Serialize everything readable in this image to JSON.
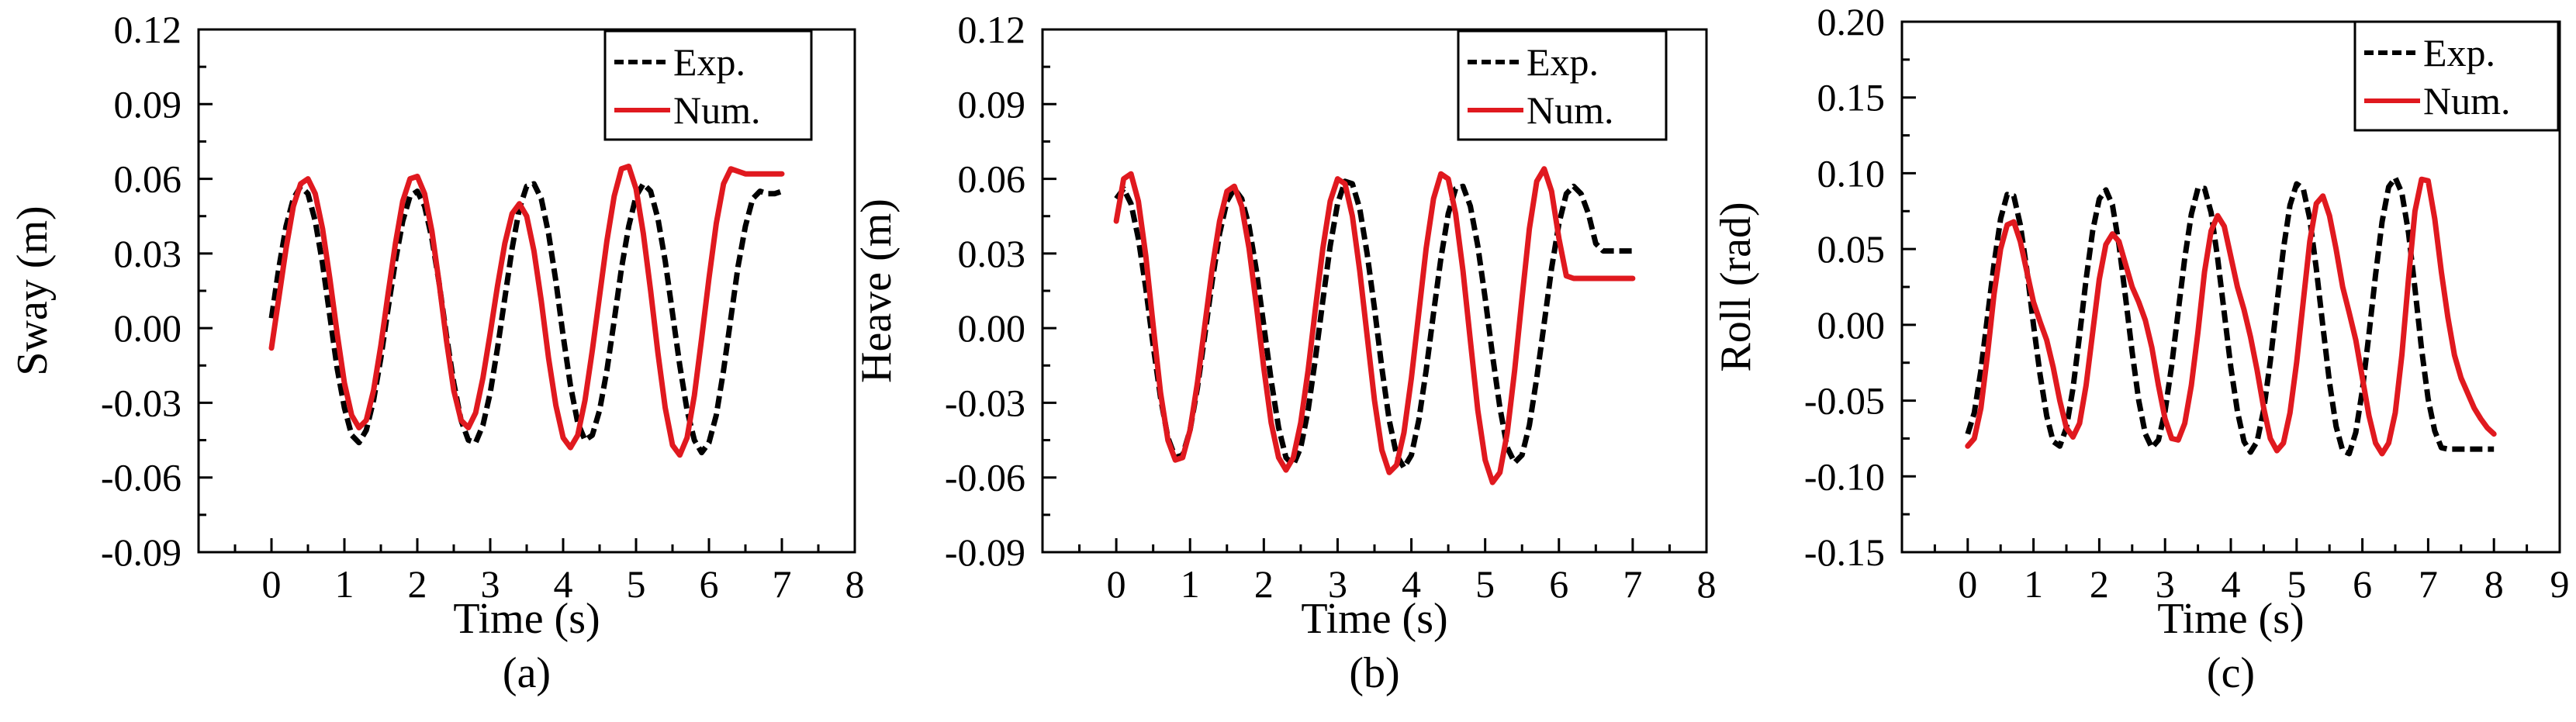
{
  "colors": {
    "exp": "#000000",
    "num": "#e0191f"
  },
  "chart_data": [
    {
      "type": "line",
      "panel_label": "(a)",
      "xlabel": "Time (s)",
      "ylabel": "Sway (m)",
      "xlim": [
        -1,
        8
      ],
      "ylim": [
        -0.09,
        0.12
      ],
      "xticks": [
        "0",
        "1",
        "2",
        "3",
        "4",
        "5",
        "6",
        "7",
        "8"
      ],
      "yticks": [
        "0.12",
        "0.09",
        "0.06",
        "0.03",
        "0.00",
        "-0.03",
        "-0.06",
        "-0.09"
      ],
      "ytick_values": [
        0.12,
        0.09,
        0.06,
        0.03,
        0.0,
        -0.03,
        -0.06,
        -0.09
      ],
      "legend_position": "top-right",
      "series": [
        {
          "name": "Exp.",
          "style": "dashed",
          "color": "#000000",
          "x": [
            0,
            0.1,
            0.2,
            0.3,
            0.4,
            0.5,
            0.6,
            0.7,
            0.8,
            0.9,
            1.0,
            1.1,
            1.2,
            1.3,
            1.4,
            1.5,
            1.6,
            1.7,
            1.8,
            1.9,
            2.0,
            2.1,
            2.2,
            2.3,
            2.4,
            2.5,
            2.6,
            2.7,
            2.8,
            2.9,
            3.0,
            3.1,
            3.2,
            3.3,
            3.4,
            3.5,
            3.6,
            3.7,
            3.8,
            3.9,
            4.0,
            4.1,
            4.2,
            4.3,
            4.4,
            4.5,
            4.6,
            4.7,
            4.8,
            4.9,
            5.0,
            5.1,
            5.2,
            5.3,
            5.4,
            5.5,
            5.6,
            5.7,
            5.8,
            5.9,
            6.0,
            6.1,
            6.2,
            6.3,
            6.4,
            6.5,
            6.6,
            6.7,
            6.8,
            6.9,
            7.0
          ],
          "y": [
            0.004,
            0.024,
            0.041,
            0.052,
            0.057,
            0.054,
            0.043,
            0.026,
            0.005,
            -0.016,
            -0.032,
            -0.043,
            -0.046,
            -0.041,
            -0.029,
            -0.012,
            0.008,
            0.027,
            0.043,
            0.053,
            0.055,
            0.049,
            0.036,
            0.018,
            -0.003,
            -0.022,
            -0.037,
            -0.045,
            -0.046,
            -0.039,
            -0.026,
            -0.008,
            0.012,
            0.032,
            0.048,
            0.057,
            0.058,
            0.052,
            0.038,
            0.019,
            -0.003,
            -0.023,
            -0.038,
            -0.045,
            -0.043,
            -0.033,
            -0.017,
            0.003,
            0.024,
            0.041,
            0.053,
            0.058,
            0.055,
            0.044,
            0.027,
            0.006,
            -0.015,
            -0.033,
            -0.045,
            -0.05,
            -0.046,
            -0.035,
            -0.017,
            0.004,
            0.025,
            0.041,
            0.052,
            0.055,
            0.054,
            0.054,
            0.055
          ]
        },
        {
          "name": "Num.",
          "style": "solid",
          "color": "#e0191f",
          "x": [
            0,
            0.1,
            0.2,
            0.3,
            0.4,
            0.5,
            0.6,
            0.7,
            0.8,
            0.9,
            1.0,
            1.1,
            1.2,
            1.3,
            1.4,
            1.5,
            1.6,
            1.7,
            1.8,
            1.9,
            2.0,
            2.1,
            2.2,
            2.3,
            2.4,
            2.5,
            2.6,
            2.7,
            2.8,
            2.9,
            3.0,
            3.1,
            3.2,
            3.3,
            3.4,
            3.5,
            3.6,
            3.7,
            3.8,
            3.9,
            4.0,
            4.1,
            4.2,
            4.3,
            4.4,
            4.5,
            4.6,
            4.7,
            4.8,
            4.9,
            5.0,
            5.1,
            5.2,
            5.3,
            5.4,
            5.5,
            5.6,
            5.7,
            5.8,
            5.9,
            6.0,
            6.1,
            6.2,
            6.3,
            6.4,
            6.5,
            6.6,
            6.7,
            6.8,
            6.9,
            7.0
          ],
          "y": [
            -0.008,
            0.012,
            0.032,
            0.049,
            0.058,
            0.06,
            0.054,
            0.04,
            0.02,
            -0.002,
            -0.022,
            -0.035,
            -0.04,
            -0.037,
            -0.025,
            -0.007,
            0.014,
            0.034,
            0.051,
            0.06,
            0.061,
            0.054,
            0.039,
            0.018,
            -0.005,
            -0.025,
            -0.037,
            -0.04,
            -0.034,
            -0.02,
            -0.002,
            0.017,
            0.034,
            0.046,
            0.05,
            0.045,
            0.031,
            0.011,
            -0.012,
            -0.031,
            -0.044,
            -0.048,
            -0.043,
            -0.029,
            -0.009,
            0.013,
            0.035,
            0.053,
            0.064,
            0.065,
            0.056,
            0.038,
            0.015,
            -0.01,
            -0.032,
            -0.047,
            -0.051,
            -0.044,
            -0.027,
            -0.004,
            0.02,
            0.042,
            0.058,
            0.064,
            0.063,
            0.062,
            0.062,
            0.062,
            0.062,
            0.062,
            0.062
          ]
        }
      ]
    },
    {
      "type": "line",
      "panel_label": "(b)",
      "xlabel": "Time (s)",
      "ylabel": "Heave (m)",
      "xlim": [
        -1,
        8
      ],
      "ylim": [
        -0.09,
        0.12
      ],
      "xticks": [
        "0",
        "1",
        "2",
        "3",
        "4",
        "5",
        "6",
        "7",
        "8"
      ],
      "yticks": [
        "0.12",
        "0.09",
        "0.06",
        "0.03",
        "0.00",
        "-0.03",
        "-0.06",
        "-0.09"
      ],
      "ytick_values": [
        0.12,
        0.09,
        0.06,
        0.03,
        0.0,
        -0.03,
        -0.06,
        -0.09
      ],
      "legend_position": "top-right",
      "series": [
        {
          "name": "Exp.",
          "style": "dashed",
          "color": "#000000",
          "x": [
            0,
            0.1,
            0.2,
            0.3,
            0.4,
            0.5,
            0.6,
            0.7,
            0.8,
            0.9,
            1.0,
            1.1,
            1.2,
            1.3,
            1.4,
            1.5,
            1.6,
            1.7,
            1.8,
            1.9,
            2.0,
            2.1,
            2.2,
            2.3,
            2.4,
            2.5,
            2.6,
            2.7,
            2.8,
            2.9,
            3.0,
            3.1,
            3.2,
            3.3,
            3.4,
            3.5,
            3.6,
            3.7,
            3.8,
            3.9,
            4.0,
            4.1,
            4.2,
            4.3,
            4.4,
            4.5,
            4.6,
            4.7,
            4.8,
            4.9,
            5.0,
            5.1,
            5.2,
            5.3,
            5.4,
            5.5,
            5.6,
            5.7,
            5.8,
            5.9,
            6.0,
            6.1,
            6.2,
            6.3,
            6.4,
            6.5,
            6.6,
            6.7,
            6.8,
            6.9,
            7.0
          ],
          "y": [
            0.052,
            0.056,
            0.05,
            0.036,
            0.016,
            -0.007,
            -0.028,
            -0.044,
            -0.052,
            -0.051,
            -0.041,
            -0.024,
            -0.003,
            0.019,
            0.038,
            0.051,
            0.056,
            0.052,
            0.041,
            0.023,
            0.001,
            -0.021,
            -0.04,
            -0.052,
            -0.055,
            -0.048,
            -0.033,
            -0.012,
            0.011,
            0.033,
            0.05,
            0.059,
            0.058,
            0.048,
            0.03,
            0.008,
            -0.016,
            -0.037,
            -0.051,
            -0.056,
            -0.051,
            -0.037,
            -0.017,
            0.006,
            0.028,
            0.046,
            0.056,
            0.057,
            0.049,
            0.033,
            0.012,
            -0.011,
            -0.032,
            -0.048,
            -0.054,
            -0.051,
            -0.039,
            -0.02,
            0.002,
            0.024,
            0.042,
            0.054,
            0.057,
            0.054,
            0.046,
            0.034,
            0.031,
            0.031,
            0.031,
            0.031,
            0.031
          ]
        },
        {
          "name": "Num.",
          "style": "solid",
          "color": "#e0191f",
          "x": [
            0,
            0.1,
            0.2,
            0.3,
            0.4,
            0.5,
            0.6,
            0.7,
            0.8,
            0.9,
            1.0,
            1.1,
            1.2,
            1.3,
            1.4,
            1.5,
            1.6,
            1.7,
            1.8,
            1.9,
            2.0,
            2.1,
            2.2,
            2.3,
            2.4,
            2.5,
            2.6,
            2.7,
            2.8,
            2.9,
            3.0,
            3.1,
            3.2,
            3.3,
            3.4,
            3.5,
            3.6,
            3.7,
            3.8,
            3.9,
            4.0,
            4.1,
            4.2,
            4.3,
            4.4,
            4.5,
            4.6,
            4.7,
            4.8,
            4.9,
            5.0,
            5.1,
            5.2,
            5.3,
            5.4,
            5.5,
            5.6,
            5.7,
            5.8,
            5.9,
            6.0,
            6.1,
            6.2,
            6.3,
            6.4,
            6.5,
            6.6,
            6.7,
            6.8,
            6.9,
            7.0
          ],
          "y": [
            0.043,
            0.06,
            0.062,
            0.051,
            0.029,
            0.001,
            -0.026,
            -0.045,
            -0.053,
            -0.052,
            -0.041,
            -0.022,
            0.001,
            0.024,
            0.043,
            0.055,
            0.057,
            0.049,
            0.032,
            0.009,
            -0.016,
            -0.038,
            -0.052,
            -0.057,
            -0.052,
            -0.038,
            -0.017,
            0.008,
            0.032,
            0.051,
            0.06,
            0.058,
            0.045,
            0.023,
            -0.003,
            -0.029,
            -0.049,
            -0.058,
            -0.055,
            -0.042,
            -0.02,
            0.006,
            0.032,
            0.052,
            0.062,
            0.06,
            0.046,
            0.023,
            -0.005,
            -0.033,
            -0.053,
            -0.062,
            -0.058,
            -0.042,
            -0.017,
            0.012,
            0.04,
            0.059,
            0.064,
            0.055,
            0.036,
            0.021,
            0.02,
            0.02,
            0.02,
            0.02,
            0.02,
            0.02,
            0.02,
            0.02,
            0.02
          ]
        }
      ]
    },
    {
      "type": "line",
      "panel_label": "(c)",
      "xlabel": "Time (s)",
      "ylabel": "Roll (rad)",
      "xlim": [
        -1,
        9
      ],
      "ylim": [
        -0.15,
        0.2
      ],
      "xticks": [
        "0",
        "1",
        "2",
        "3",
        "4",
        "5",
        "6",
        "7",
        "8",
        "9"
      ],
      "yticks": [
        "0.20",
        "0.15",
        "0.10",
        "0.05",
        "0.00",
        "-0.05",
        "-0.10",
        "-0.15"
      ],
      "ytick_values": [
        0.2,
        0.15,
        0.1,
        0.05,
        0.0,
        -0.05,
        -0.1,
        -0.15
      ],
      "legend_position": "top-right",
      "series": [
        {
          "name": "Exp.",
          "style": "dashed",
          "color": "#000000",
          "x": [
            0,
            0.1,
            0.2,
            0.3,
            0.4,
            0.5,
            0.6,
            0.7,
            0.8,
            0.9,
            1.0,
            1.1,
            1.2,
            1.3,
            1.4,
            1.5,
            1.6,
            1.7,
            1.8,
            1.9,
            2.0,
            2.1,
            2.2,
            2.3,
            2.4,
            2.5,
            2.6,
            2.7,
            2.8,
            2.9,
            3.0,
            3.1,
            3.2,
            3.3,
            3.4,
            3.5,
            3.6,
            3.7,
            3.8,
            3.9,
            4.0,
            4.1,
            4.2,
            4.3,
            4.4,
            4.5,
            4.6,
            4.7,
            4.8,
            4.9,
            5.0,
            5.1,
            5.2,
            5.3,
            5.4,
            5.5,
            5.6,
            5.7,
            5.8,
            5.9,
            6.0,
            6.1,
            6.2,
            6.3,
            6.4,
            6.5,
            6.6,
            6.7,
            6.8,
            6.9,
            7.0,
            7.1,
            7.2,
            7.3,
            7.4,
            7.5,
            7.6,
            7.7,
            7.8,
            7.9,
            8.0
          ],
          "y": [
            -0.072,
            -0.058,
            -0.03,
            0.005,
            0.04,
            0.07,
            0.086,
            0.085,
            0.066,
            0.036,
            0.0,
            -0.033,
            -0.06,
            -0.077,
            -0.08,
            -0.068,
            -0.042,
            -0.007,
            0.03,
            0.062,
            0.083,
            0.089,
            0.079,
            0.053,
            0.018,
            -0.018,
            -0.05,
            -0.072,
            -0.081,
            -0.076,
            -0.057,
            -0.027,
            0.009,
            0.044,
            0.073,
            0.09,
            0.09,
            0.074,
            0.044,
            0.008,
            -0.028,
            -0.057,
            -0.077,
            -0.084,
            -0.077,
            -0.056,
            -0.024,
            0.014,
            0.05,
            0.079,
            0.093,
            0.09,
            0.07,
            0.037,
            -0.001,
            -0.038,
            -0.067,
            -0.083,
            -0.085,
            -0.071,
            -0.043,
            -0.006,
            0.033,
            0.068,
            0.091,
            0.097,
            0.087,
            0.061,
            0.024,
            -0.016,
            -0.049,
            -0.07,
            -0.081,
            -0.082,
            -0.082,
            -0.082,
            -0.082,
            -0.082,
            -0.082,
            -0.082,
            -0.082
          ]
        },
        {
          "name": "Num.",
          "style": "solid",
          "color": "#e0191f",
          "x": [
            0,
            0.1,
            0.2,
            0.3,
            0.4,
            0.5,
            0.6,
            0.7,
            0.8,
            0.9,
            1.0,
            1.1,
            1.2,
            1.3,
            1.4,
            1.5,
            1.6,
            1.7,
            1.8,
            1.9,
            2.0,
            2.1,
            2.2,
            2.3,
            2.4,
            2.5,
            2.6,
            2.7,
            2.8,
            2.9,
            3.0,
            3.1,
            3.2,
            3.3,
            3.4,
            3.5,
            3.6,
            3.7,
            3.8,
            3.9,
            4.0,
            4.1,
            4.2,
            4.3,
            4.4,
            4.5,
            4.6,
            4.7,
            4.8,
            4.9,
            5.0,
            5.1,
            5.2,
            5.3,
            5.4,
            5.5,
            5.6,
            5.7,
            5.8,
            5.9,
            6.0,
            6.1,
            6.2,
            6.3,
            6.4,
            6.5,
            6.6,
            6.7,
            6.8,
            6.9,
            7.0,
            7.1,
            7.2,
            7.3,
            7.4,
            7.5,
            7.6,
            7.7,
            7.8,
            7.9,
            8.0
          ],
          "y": [
            -0.08,
            -0.075,
            -0.055,
            -0.02,
            0.02,
            0.05,
            0.066,
            0.068,
            0.055,
            0.035,
            0.015,
            0.002,
            -0.01,
            -0.028,
            -0.05,
            -0.068,
            -0.074,
            -0.065,
            -0.04,
            -0.005,
            0.03,
            0.053,
            0.06,
            0.055,
            0.04,
            0.025,
            0.015,
            0.003,
            -0.015,
            -0.04,
            -0.062,
            -0.075,
            -0.076,
            -0.065,
            -0.04,
            -0.005,
            0.035,
            0.062,
            0.072,
            0.065,
            0.045,
            0.025,
            0.01,
            -0.008,
            -0.03,
            -0.055,
            -0.075,
            -0.083,
            -0.078,
            -0.058,
            -0.025,
            0.015,
            0.055,
            0.08,
            0.085,
            0.072,
            0.05,
            0.025,
            0.008,
            -0.01,
            -0.035,
            -0.06,
            -0.078,
            -0.085,
            -0.078,
            -0.058,
            -0.02,
            0.03,
            0.075,
            0.096,
            0.095,
            0.07,
            0.035,
            0.005,
            -0.02,
            -0.035,
            -0.045,
            -0.055,
            -0.062,
            -0.068,
            -0.072
          ]
        }
      ]
    }
  ]
}
